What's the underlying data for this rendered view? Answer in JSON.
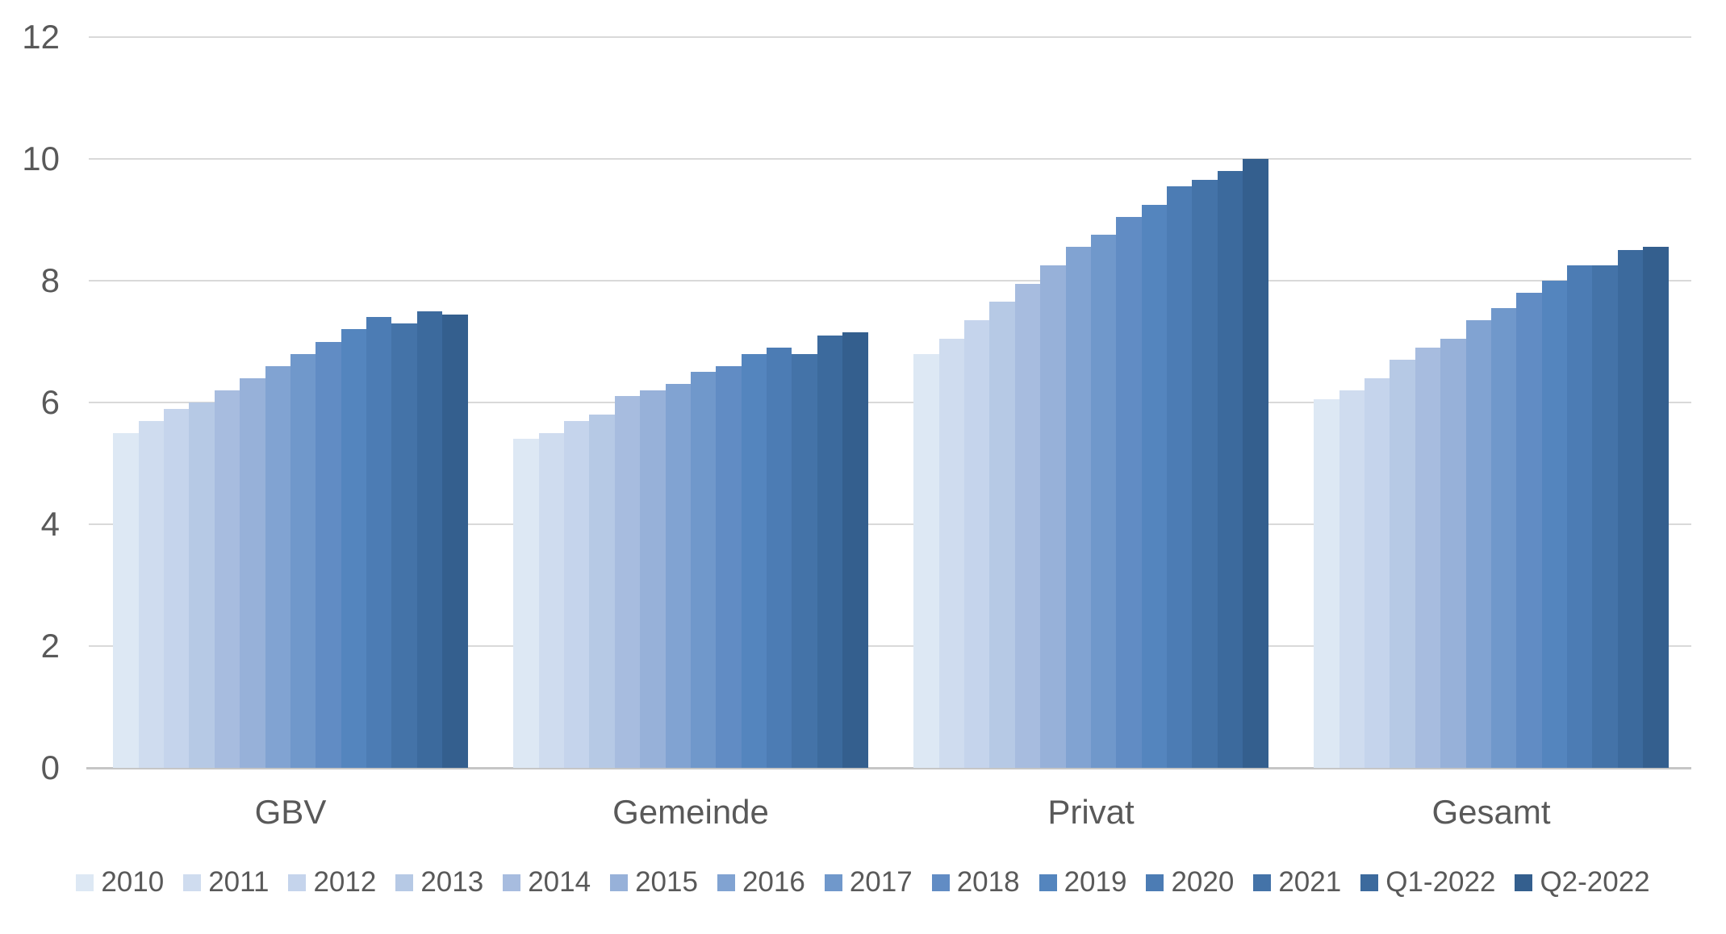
{
  "chart_data": {
    "type": "bar",
    "title": "",
    "categories": [
      "GBV",
      "Gemeinde",
      "Privat",
      "Gesamt"
    ],
    "series": [
      {
        "name": "2010",
        "color": "#dde8f4",
        "values": [
          5.5,
          5.4,
          6.8,
          6.05
        ]
      },
      {
        "name": "2011",
        "color": "#cfdcef",
        "values": [
          5.7,
          5.5,
          7.05,
          6.2
        ]
      },
      {
        "name": "2012",
        "color": "#c5d4ec",
        "values": [
          5.9,
          5.7,
          7.35,
          6.4
        ]
      },
      {
        "name": "2013",
        "color": "#b6c9e5",
        "values": [
          6.0,
          5.8,
          7.65,
          6.7
        ]
      },
      {
        "name": "2014",
        "color": "#a7bcdf",
        "values": [
          6.2,
          6.1,
          7.95,
          6.9
        ]
      },
      {
        "name": "2015",
        "color": "#97b1d9",
        "values": [
          6.4,
          6.2,
          8.25,
          7.05
        ]
      },
      {
        "name": "2016",
        "color": "#81a3d2",
        "values": [
          6.6,
          6.3,
          8.55,
          7.35
        ]
      },
      {
        "name": "2017",
        "color": "#7098cb",
        "values": [
          6.8,
          6.5,
          8.75,
          7.55
        ]
      },
      {
        "name": "2018",
        "color": "#618cc4",
        "values": [
          7.0,
          6.6,
          9.05,
          7.8
        ]
      },
      {
        "name": "2019",
        "color": "#5485be",
        "values": [
          7.2,
          6.8,
          9.25,
          8.0
        ]
      },
      {
        "name": "2020",
        "color": "#4c7cb4",
        "values": [
          7.4,
          6.9,
          9.55,
          8.25
        ]
      },
      {
        "name": "2021",
        "color": "#4473a8",
        "values": [
          7.3,
          6.8,
          9.65,
          8.25
        ]
      },
      {
        "name": "Q1-2022",
        "color": "#3c6a9d",
        "values": [
          7.5,
          7.1,
          9.8,
          8.5
        ]
      },
      {
        "name": "Q2-2022",
        "color": "#345f8e",
        "values": [
          7.45,
          7.15,
          10.0,
          8.55
        ]
      }
    ],
    "xlabel": "",
    "ylabel": "",
    "ylim": [
      0,
      12
    ],
    "yticks": [
      0,
      2,
      4,
      6,
      8,
      10,
      12
    ],
    "grid": "horizontal",
    "legend_position": "bottom",
    "colors": {
      "background": "#ffffff",
      "gridline": "#d9d9d9",
      "axis_line": "#c6c6c6",
      "text": "#595959"
    }
  }
}
